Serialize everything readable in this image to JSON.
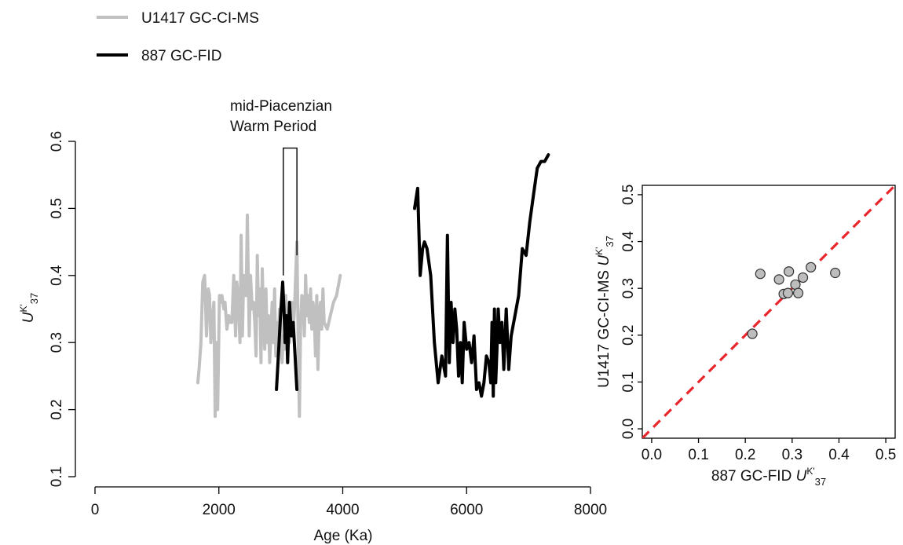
{
  "colors": {
    "u1417": "#c0c0c0",
    "site887": "#000000",
    "one_to_one": "#e8262b",
    "scatter_fill": "#bdbdbd",
    "scatter_stroke": "#333333"
  },
  "legend": [
    {
      "label": "U1417 GC-CI-MS",
      "color": "#c0c0c0"
    },
    {
      "label": "887 GC-FID",
      "color": "#000000"
    }
  ],
  "annotation": {
    "line1": "mid-Piacenzian",
    "line2": "Warm Period",
    "range": [
      3040,
      3260
    ],
    "top_value": 0.59
  },
  "time_series": {
    "y_label": {
      "main": "U",
      "sup": "K'",
      "sub": "37"
    },
    "x_label": "Age (Ka)"
  },
  "scatter": {
    "x_label": {
      "prefix": "887 GC-FID ",
      "main": "U",
      "sup": "K'",
      "sub": "37"
    },
    "y_label": {
      "prefix": "U1417 GC-CI-MS ",
      "main": "U",
      "sup": "K'",
      "sub": "37"
    }
  },
  "chart_data": [
    {
      "type": "line",
      "xlim": [
        0,
        8000
      ],
      "ylim": [
        0.1,
        0.6
      ],
      "xticks": [
        0,
        2000,
        4000,
        6000,
        8000
      ],
      "yticks": [
        0.1,
        0.2,
        0.3,
        0.4,
        0.5,
        0.6
      ],
      "xtick_labels": [
        "0",
        "2000",
        "4000",
        "6000",
        "8000"
      ],
      "ytick_labels": [
        "0.1",
        "0.2",
        "0.3",
        "0.4",
        "0.5",
        "0.6"
      ],
      "xlabel": "Age (Ka)",
      "ylabel": "UK'37",
      "grid": false,
      "legend_position": "top-left",
      "series": [
        {
          "name": "U1417 GC-CI-MS",
          "color": "#c0c0c0",
          "x": [
            1660,
            1680,
            1710,
            1740,
            1770,
            1800,
            1830,
            1850,
            1870,
            1900,
            1920,
            1940,
            1960,
            1980,
            2010,
            2030,
            2050,
            2080,
            2100,
            2130,
            2160,
            2190,
            2210,
            2240,
            2270,
            2290,
            2310,
            2340,
            2360,
            2380,
            2400,
            2420,
            2440,
            2460,
            2490,
            2510,
            2540,
            2560,
            2580,
            2600,
            2620,
            2640,
            2660,
            2680,
            2700,
            2720,
            2740,
            2760,
            2780,
            2800,
            2820,
            2840,
            2860,
            2880,
            2900,
            2920,
            2940,
            2960,
            2980,
            3000,
            3020,
            3040,
            3060,
            3080,
            3100,
            3120,
            3140,
            3160,
            3180,
            3200,
            3220,
            3240,
            3260,
            3280,
            3300,
            3320,
            3340,
            3360,
            3380,
            3400,
            3420,
            3440,
            3460,
            3480,
            3500,
            3520,
            3540,
            3560,
            3580,
            3600,
            3620,
            3640,
            3660,
            3680,
            3700,
            3750,
            3800,
            3850,
            3900,
            3960
          ],
          "y": [
            0.24,
            0.26,
            0.3,
            0.39,
            0.4,
            0.31,
            0.38,
            0.37,
            0.3,
            0.34,
            0.36,
            0.19,
            0.3,
            0.2,
            0.37,
            0.36,
            0.37,
            0.35,
            0.36,
            0.32,
            0.34,
            0.33,
            0.33,
            0.4,
            0.31,
            0.39,
            0.37,
            0.3,
            0.46,
            0.31,
            0.4,
            0.39,
            0.37,
            0.49,
            0.31,
            0.4,
            0.35,
            0.36,
            0.33,
            0.28,
            0.43,
            0.34,
            0.38,
            0.27,
            0.41,
            0.34,
            0.29,
            0.38,
            0.3,
            0.34,
            0.27,
            0.31,
            0.36,
            0.3,
            0.38,
            0.28,
            0.33,
            0.3,
            0.35,
            0.32,
            0.27,
            0.31,
            0.29,
            0.37,
            0.31,
            0.34,
            0.3,
            0.33,
            0.36,
            0.32,
            0.35,
            0.4,
            0.45,
            0.31,
            0.19,
            0.33,
            0.37,
            0.36,
            0.31,
            0.4,
            0.34,
            0.37,
            0.33,
            0.38,
            0.32,
            0.36,
            0.34,
            0.28,
            0.37,
            0.26,
            0.34,
            0.36,
            0.32,
            0.38,
            0.33,
            0.32,
            0.34,
            0.36,
            0.37,
            0.4
          ]
        },
        {
          "name": "887 GC-FID",
          "color": "#000000",
          "x": [
            2930,
            2960,
            2990,
            3010,
            3030,
            3050,
            3070,
            3090,
            3110,
            3140,
            3170,
            3200,
            3230,
            3260,
            5160,
            5210,
            5250,
            5290,
            5320,
            5360,
            5420,
            5480,
            5540,
            5600,
            5660,
            5690,
            5720,
            5750,
            5780,
            5810,
            5840,
            5870,
            5900,
            5930,
            5960,
            6000,
            6040,
            6080,
            6120,
            6160,
            6200,
            6240,
            6280,
            6320,
            6360,
            6390,
            6410,
            6430,
            6450,
            6470,
            6490,
            6510,
            6540,
            6570,
            6600,
            6640,
            6680,
            6720,
            6780,
            6840,
            6900,
            6960,
            7020,
            7080,
            7140,
            7200,
            7260,
            7320
          ],
          "y": [
            0.23,
            0.28,
            0.33,
            0.36,
            0.39,
            0.35,
            0.3,
            0.34,
            0.27,
            0.36,
            0.31,
            0.33,
            0.28,
            0.23,
            0.5,
            0.53,
            0.4,
            0.44,
            0.45,
            0.44,
            0.4,
            0.3,
            0.24,
            0.28,
            0.25,
            0.46,
            0.27,
            0.36,
            0.3,
            0.35,
            0.32,
            0.25,
            0.3,
            0.24,
            0.33,
            0.29,
            0.3,
            0.27,
            0.31,
            0.23,
            0.24,
            0.22,
            0.24,
            0.28,
            0.27,
            0.24,
            0.33,
            0.22,
            0.35,
            0.24,
            0.29,
            0.35,
            0.3,
            0.33,
            0.26,
            0.35,
            0.26,
            0.31,
            0.34,
            0.37,
            0.44,
            0.43,
            0.48,
            0.52,
            0.56,
            0.57,
            0.57,
            0.58
          ]
        }
      ]
    },
    {
      "type": "scatter",
      "xlim": [
        -0.02,
        0.52
      ],
      "ylim": [
        -0.02,
        0.52
      ],
      "xticks": [
        0.0,
        0.1,
        0.2,
        0.3,
        0.4,
        0.5
      ],
      "yticks": [
        0.0,
        0.1,
        0.2,
        0.3,
        0.4,
        0.5
      ],
      "xtick_labels": [
        "0.0",
        "0.1",
        "0.2",
        "0.3",
        "0.4",
        "0.5"
      ],
      "ytick_labels": [
        "0.0",
        "0.1",
        "0.2",
        "0.3",
        "0.4",
        "0.5"
      ],
      "xlabel": "887 GC-FID UK'37",
      "ylabel": "U1417 GC-CI-MS UK'37",
      "grid": false,
      "reference_line": {
        "style": "dashed",
        "color": "#e8262b",
        "slope": 1,
        "intercept": 0
      },
      "points": [
        {
          "x": 0.215,
          "y": 0.203
        },
        {
          "x": 0.232,
          "y": 0.331
        },
        {
          "x": 0.272,
          "y": 0.319
        },
        {
          "x": 0.282,
          "y": 0.288
        },
        {
          "x": 0.291,
          "y": 0.29
        },
        {
          "x": 0.293,
          "y": 0.336
        },
        {
          "x": 0.307,
          "y": 0.308
        },
        {
          "x": 0.313,
          "y": 0.29
        },
        {
          "x": 0.323,
          "y": 0.323
        },
        {
          "x": 0.34,
          "y": 0.345
        },
        {
          "x": 0.392,
          "y": 0.333
        }
      ]
    }
  ]
}
